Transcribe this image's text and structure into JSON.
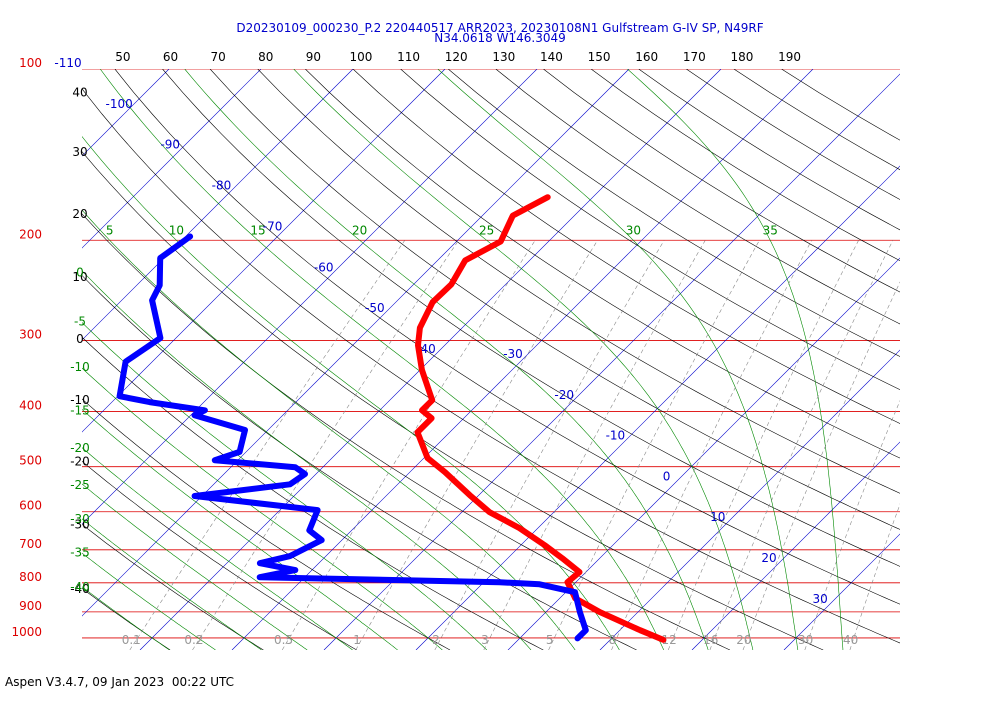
{
  "chart_data": {
    "type": "skewt",
    "title": "D20230109_000230_P.2 220440517 ARR2023, 20230108N1 Gulfstream G-IV SP, N49RF",
    "subtitle": "N34.0618 W146.3049",
    "footer": "Aspen V3.4.7, 09 Jan 2023  00:22 UTC",
    "log_y": true,
    "ylim": [
      100,
      1050
    ],
    "yticks": [
      100,
      200,
      300,
      400,
      500,
      600,
      700,
      800,
      900,
      1000
    ],
    "isotherms": [
      -110,
      -100,
      -90,
      -80,
      -70,
      -60,
      -50,
      -40,
      -30,
      -20,
      -10,
      0,
      10,
      20,
      30
    ],
    "dry_adiabats": [
      -40,
      -30,
      -20,
      -10,
      0,
      10,
      20,
      30,
      40,
      50,
      60,
      70,
      80,
      90,
      100,
      110,
      120,
      130,
      140,
      150,
      160,
      170,
      180,
      190
    ],
    "moist_adiabats": [
      -40,
      -35,
      -30,
      -25,
      -20,
      -15,
      -10,
      -5,
      0,
      5,
      10,
      15,
      20,
      25,
      30,
      35
    ],
    "mixing_ratios": [
      0.1,
      0.2,
      0.5,
      1,
      2,
      3,
      5,
      8,
      12,
      16,
      20,
      30,
      40
    ],
    "series": [
      {
        "color": "#ff0000",
        "pressure": [
          168,
          181,
          201,
          217,
          239,
          257,
          285,
          306,
          338,
          382,
          398,
          411,
          435,
          483,
          511,
          561,
          601,
          641,
          687,
          724,
          766,
          798,
          852,
          901,
          969,
          1008
        ],
        "values": [
          -44.9,
          -46.7,
          -45.2,
          -47.0,
          -45.9,
          -46.0,
          -44.6,
          -42.9,
          -39.8,
          -35.4,
          -35.4,
          -33.5,
          -33.5,
          -29.6,
          -26.2,
          -21.0,
          -17.0,
          -12.0,
          -7.4,
          -4.1,
          -0.7,
          -0.9,
          1.7,
          5.9,
          12.2,
          15.8
        ]
      },
      {
        "color": "#0000ff",
        "pressure": [
          197,
          215,
          240,
          255,
          297,
          327,
          376,
          385,
          398,
          406,
          431,
          471,
          487,
          501,
          515,
          537,
          563,
          596,
          647,
          673,
          718,
          739,
          760,
          782,
          798,
          805,
          831,
          901,
          969,
          1002
        ],
        "values": [
          -79.5,
          -80.4,
          -77.5,
          -76.7,
          -71.7,
          -72.9,
          -69.8,
          -65.9,
          -59.0,
          -59.6,
          -52.5,
          -50.7,
          -52.5,
          -43.0,
          -41.2,
          -41.7,
          -50.8,
          -35.9,
          -34.6,
          -32.2,
          -33.9,
          -36.4,
          -31.8,
          -34.9,
          -8.3,
          -3.7,
          1.0,
          3.7,
          6.3,
          6.3
        ]
      }
    ]
  }
}
